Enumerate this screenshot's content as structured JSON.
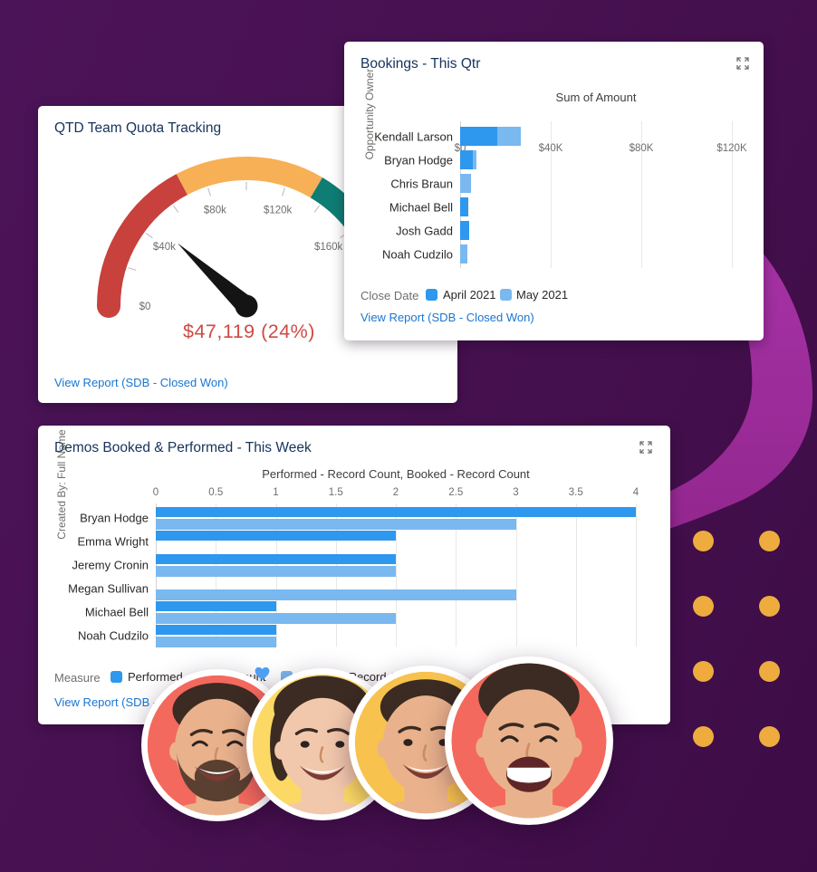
{
  "background": {
    "base_color": "#471150",
    "ribbon_color_top": "#a833a8",
    "ribbon_color_bottom": "#93278f",
    "dot_color": "#eeac3e",
    "heart_color": "#4d9fef"
  },
  "colors": {
    "title_navy": "#16325c",
    "link_blue": "#1a76d2",
    "gray_text": "#706e6b",
    "dark_text": "#3e3e3c",
    "series_dark_blue": "#2e97ee",
    "series_light_blue": "#7ab8f0",
    "gauge_red": "#c8413c",
    "gauge_orange": "#f7b055",
    "gauge_teal": "#0e7d74",
    "gauge_rest_gray": "#e8e8e7",
    "gauge_value_red": "#cf4a44",
    "needle_black": "#141414"
  },
  "quota_card": {
    "title": "QTD Team Quota Tracking",
    "view_report": "View Report (SDB - Closed Won)",
    "chart_data": {
      "type": "gauge",
      "value": 47119,
      "value_label": "$47,119 (24%)",
      "min": 0,
      "max": 200000,
      "tick_labels": [
        "$0",
        "$40k",
        "$80k",
        "$120k",
        "$160k"
      ],
      "tick_values": [
        0,
        40000,
        80000,
        120000,
        160000
      ],
      "segments": [
        {
          "name": "red",
          "from": 0,
          "to": 69000
        },
        {
          "name": "orange",
          "from": 69000,
          "to": 134000
        },
        {
          "name": "teal",
          "from": 134000,
          "to": 160000
        },
        {
          "name": "gray",
          "from": 160000,
          "to": 200000
        }
      ]
    }
  },
  "bookings_card": {
    "title": "Bookings - This Qtr",
    "view_report": "View Report (SDB - Closed Won)",
    "legend_title": "Close Date",
    "chart_data": {
      "type": "bar",
      "orientation": "horizontal",
      "stacked": true,
      "title": "Sum of Amount",
      "ylabel": "Opportunity Owner",
      "x_ticks": [
        "$0",
        "$40K",
        "$80K",
        "$120K"
      ],
      "x_tick_values": [
        0,
        40000,
        80000,
        120000
      ],
      "xlim": [
        0,
        130000
      ],
      "categories": [
        "Kendall Larson",
        "Bryan Hodge",
        "Chris Braun",
        "Michael Bell",
        "Josh Gadd",
        "Noah Cudzilo"
      ],
      "series": [
        {
          "name": "April 2021",
          "values": [
            16400,
            5600,
            0,
            3700,
            4000,
            0
          ]
        },
        {
          "name": "May 2021",
          "values": [
            10300,
            1700,
            4700,
            0,
            0,
            3300
          ]
        }
      ],
      "legend_position": "bottom",
      "grid": true
    }
  },
  "demos_card": {
    "title": "Demos Booked & Performed - This Week",
    "view_report": "View Report (SDB -",
    "legend_title": "Measure",
    "chart_data": {
      "type": "bar",
      "orientation": "horizontal",
      "grouped": true,
      "title": "Performed - Record Count, Booked - Record Count",
      "ylabel": "Created By: Full Name",
      "x_ticks": [
        "0",
        "0.5",
        "1",
        "1.5",
        "2",
        "2.5",
        "3",
        "3.5",
        "4"
      ],
      "x_tick_values": [
        0,
        0.5,
        1,
        1.5,
        2,
        2.5,
        3,
        3.5,
        4
      ],
      "xlim": [
        0,
        4
      ],
      "categories": [
        "Bryan Hodge",
        "Emma Wright",
        "Jeremy Cronin",
        "Megan Sullivan",
        "Michael Bell",
        "Noah Cudzilo"
      ],
      "series": [
        {
          "name": "Performed - Record Count",
          "values": [
            4,
            2,
            2,
            0,
            1,
            1
          ]
        },
        {
          "name": "Booked - Record Count",
          "values": [
            3,
            0,
            2,
            3,
            2,
            1
          ]
        }
      ],
      "legend_position": "bottom",
      "grid": true
    }
  },
  "avatars": [
    {
      "bg": "#f4695d",
      "description": "smiling bearded man"
    },
    {
      "bg": "#fbd964",
      "description": "smiling woman"
    },
    {
      "bg": "#f7c24e",
      "description": "smiling young man"
    },
    {
      "bg": "#f4695d",
      "description": "laughing man"
    }
  ]
}
